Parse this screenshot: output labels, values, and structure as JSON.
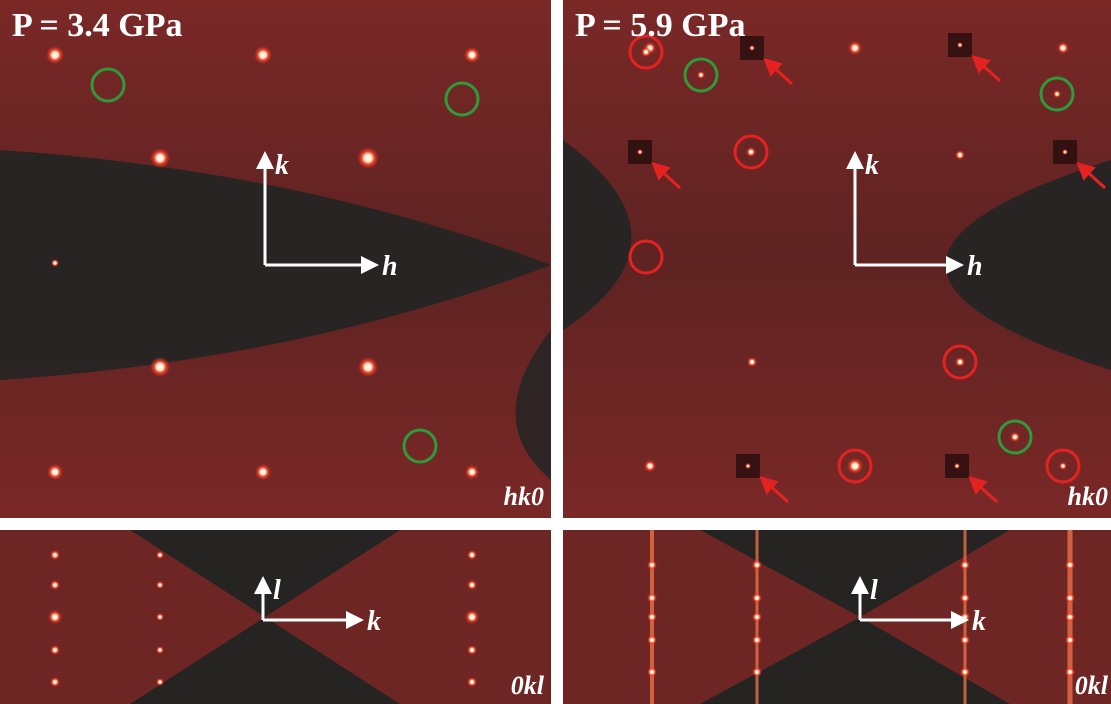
{
  "panels": [
    {
      "pressure": "P = 3.4 GPa",
      "plane": "hk0",
      "axis_up": "k",
      "axis_right": "h"
    },
    {
      "pressure": "P = 5.9 GPa",
      "plane": "hk0",
      "axis_up": "k",
      "axis_right": "h"
    },
    {
      "plane": "0kl",
      "axis_up": "l",
      "axis_right": "k"
    },
    {
      "plane": "0kl",
      "axis_up": "l",
      "axis_right": "k"
    }
  ]
}
